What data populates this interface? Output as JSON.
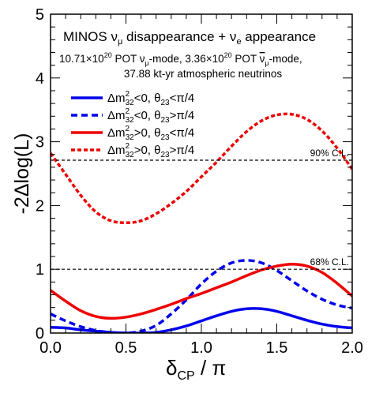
{
  "chart_data": {
    "type": "line",
    "title": {
      "main": "MINOS ν",
      "main_sub": "μ",
      "main_mid": " disappearance + ν",
      "main_sub2": "e",
      "main_end": " appearance"
    },
    "subtitle": {
      "p1": "10.71×10",
      "p1_sup": "20",
      "p2": " POT ν",
      "p2_sub": "μ",
      "p3": "-mode, 3.36×10",
      "p3_sup": "20",
      "p4": " POT ",
      "p4_bar": "ν",
      "p4_sub": "μ",
      "p5": "-mode,",
      "line2": "37.88 kt-yr atmospheric neutrinos"
    },
    "xlabel": {
      "main": "δ",
      "sub": "CP",
      "rest": " / π"
    },
    "ylabel": "-2Δlog(L)",
    "xlim": [
      0,
      2
    ],
    "ylim": [
      0,
      5
    ],
    "xticks": [
      "0.0",
      "0.5",
      "1.0",
      "1.5",
      "2.0"
    ],
    "yticks": [
      "0",
      "1",
      "2",
      "3",
      "4",
      "5"
    ],
    "grid": false,
    "legend_position": "top-left",
    "reference_lines": [
      {
        "y": 2.71,
        "label": "90% C.L."
      },
      {
        "y": 1.0,
        "label": "68% C.L."
      }
    ],
    "x": [
      0.0,
      0.1,
      0.2,
      0.3,
      0.4,
      0.5,
      0.6,
      0.7,
      0.8,
      0.9,
      1.0,
      1.1,
      1.2,
      1.3,
      1.4,
      1.5,
      1.6,
      1.7,
      1.8,
      1.9,
      2.0
    ],
    "series": [
      {
        "mass_label": "Δm",
        "mass_sup": "2",
        "mass_sub": "32",
        "mass_rel": "<0,  ",
        "theta_label": "θ",
        "theta_sub": "23",
        "theta_rel": "<π/4",
        "color": "#0000ee",
        "dash": "solid",
        "values": [
          0.09,
          0.08,
          0.05,
          0.03,
          0.01,
          0.0,
          0.0,
          0.01,
          0.05,
          0.11,
          0.19,
          0.27,
          0.34,
          0.38,
          0.38,
          0.34,
          0.27,
          0.2,
          0.14,
          0.1,
          0.08
        ]
      },
      {
        "mass_label": "Δm",
        "mass_sup": "2",
        "mass_sub": "32",
        "mass_rel": "<0,  ",
        "theta_label": "θ",
        "theta_sub": "23",
        "theta_rel": ">π/4",
        "color": "#0000ee",
        "dash": "dashed",
        "values": [
          0.3,
          0.19,
          0.1,
          0.04,
          0.01,
          0.0,
          0.03,
          0.12,
          0.3,
          0.52,
          0.77,
          0.97,
          1.1,
          1.14,
          1.1,
          0.98,
          0.82,
          0.66,
          0.53,
          0.44,
          0.39
        ]
      },
      {
        "mass_label": "Δm",
        "mass_sup": "2",
        "mass_sub": "32",
        "mass_rel": ">0,  ",
        "theta_label": "θ",
        "theta_sub": "23",
        "theta_rel": "<π/4",
        "color": "#ee0000",
        "dash": "solid",
        "values": [
          0.67,
          0.5,
          0.35,
          0.26,
          0.23,
          0.25,
          0.3,
          0.37,
          0.45,
          0.54,
          0.62,
          0.71,
          0.8,
          0.9,
          0.99,
          1.05,
          1.08,
          1.05,
          0.95,
          0.78,
          0.58
        ]
      },
      {
        "mass_label": "Δm",
        "mass_sup": "2",
        "mass_sub": "32",
        "mass_rel": ">0,  ",
        "theta_label": "θ",
        "theta_sub": "23",
        "theta_rel": ">π/4",
        "color": "#ee0000",
        "dash": "dotted",
        "values": [
          2.82,
          2.49,
          2.16,
          1.9,
          1.76,
          1.73,
          1.76,
          1.87,
          2.03,
          2.22,
          2.45,
          2.68,
          2.93,
          3.16,
          3.33,
          3.42,
          3.43,
          3.35,
          3.17,
          2.9,
          2.57
        ]
      }
    ]
  }
}
